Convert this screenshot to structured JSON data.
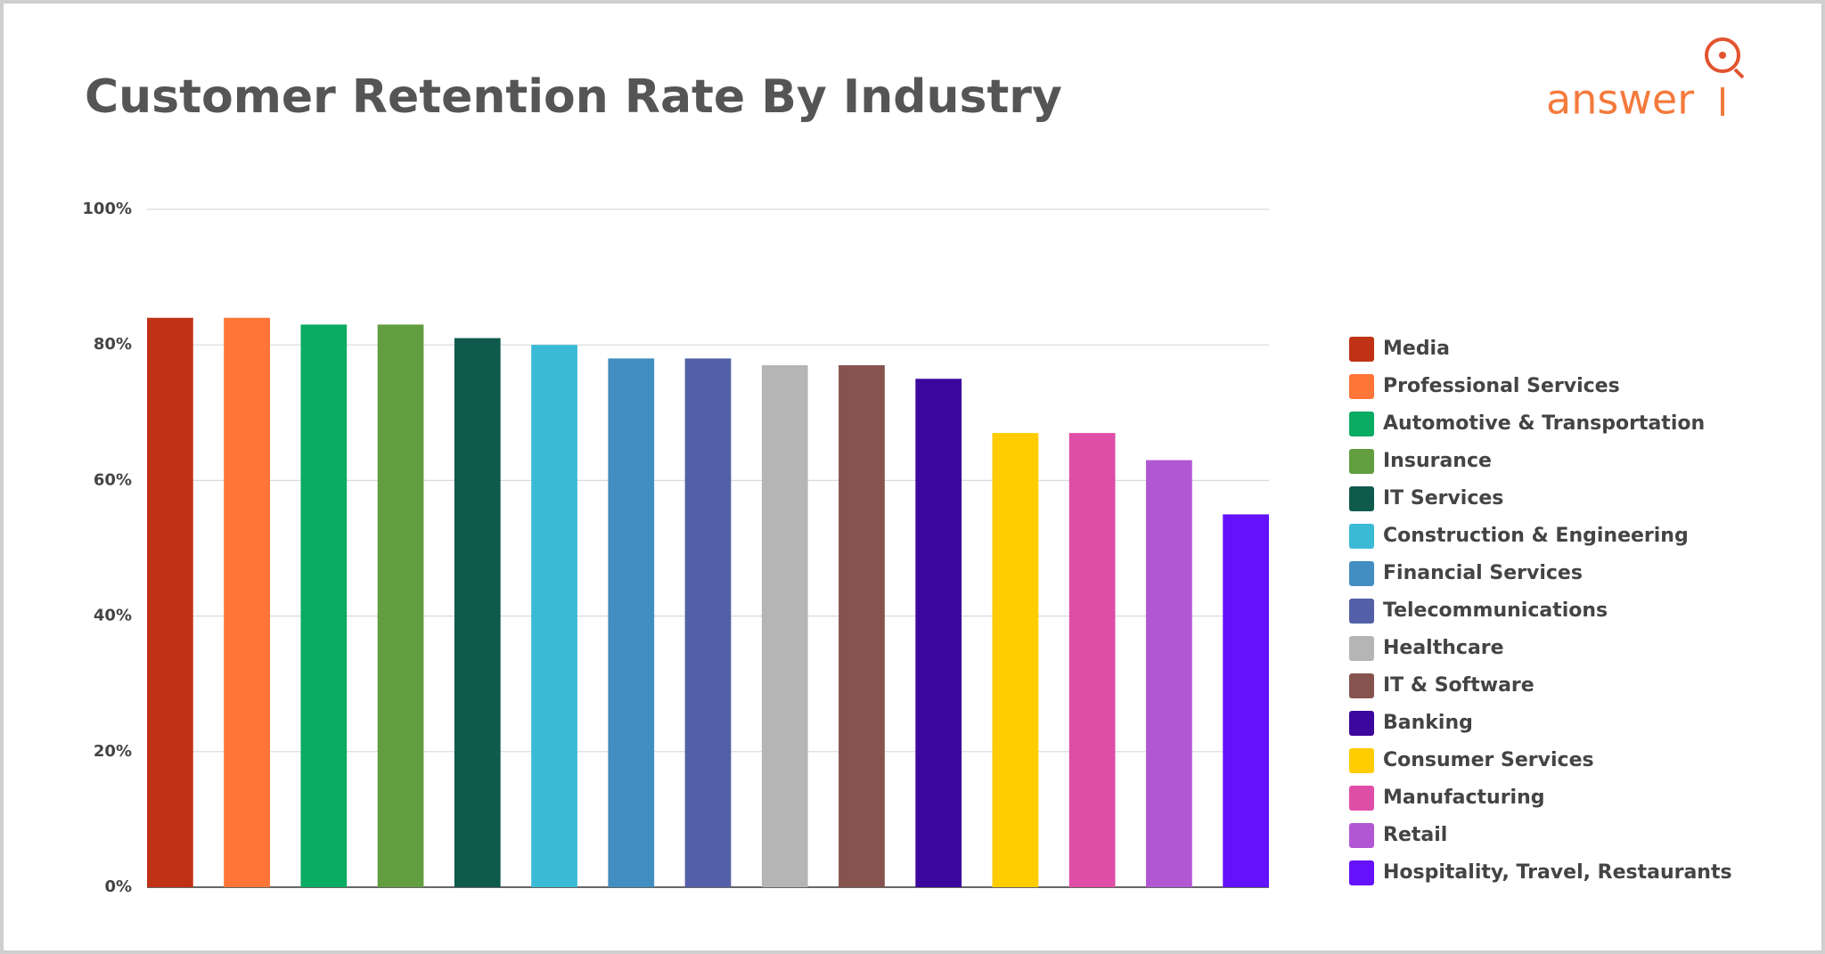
{
  "chart_data": {
    "type": "bar",
    "title": "Customer Retention Rate By Industry",
    "logo": "answer",
    "categories": [
      "Media",
      "Professional Services",
      "Automotive & Transportation",
      "Insurance",
      "IT Services",
      "Construction & Engineering",
      "Financial Services",
      "Telecommunications",
      "Healthcare",
      "IT & Software",
      "Banking",
      "Consumer Services",
      "Manufacturing",
      "Retail",
      "Hospitality, Travel, Restaurants"
    ],
    "values": [
      84,
      84,
      83,
      83,
      81,
      80,
      78,
      78,
      77,
      77,
      75,
      67,
      67,
      63,
      55
    ],
    "colors": [
      "#c03216",
      "#ff7537",
      "#0aab62",
      "#629e3f",
      "#0f5a4d",
      "#3bbad6",
      "#428ec0",
      "#5360a7",
      "#b4b5b4",
      "#87534e",
      "#3c079d",
      "#ffcc00",
      "#df4ea6",
      "#b257d4",
      "#6312fb"
    ],
    "ylim": [
      0,
      100
    ],
    "yticks": [
      {
        "value": 0,
        "label": "0%"
      },
      {
        "value": 20,
        "label": "20%"
      },
      {
        "value": 40,
        "label": "40%"
      },
      {
        "value": 60,
        "label": "60%"
      },
      {
        "value": 80,
        "label": "80%"
      },
      {
        "value": 100,
        "label": "100%"
      }
    ],
    "grid": true
  }
}
